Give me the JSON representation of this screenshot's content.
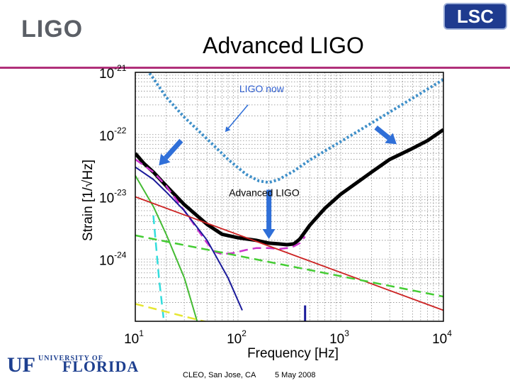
{
  "header": {
    "logo_left": "LIGO",
    "logo_right": "LSC",
    "title": "Advanced LIGO"
  },
  "footer": {
    "logo": "UF",
    "logo_univ": "UNIVERSITY OF",
    "logo_state": "FLORIDA",
    "venue": "CLEO, San Jose, CA",
    "date": "5 May 2008"
  },
  "chart_data": {
    "type": "line",
    "xlabel": "Frequency [Hz]",
    "ylabel": "Strain [1/√Hz]",
    "xscale": "log",
    "yscale": "log",
    "xlim": [
      10,
      10000
    ],
    "ylim": [
      1e-25,
      1e-21
    ],
    "grid": true,
    "x_ticks": [
      {
        "base": "10",
        "exp": "1",
        "value": 10
      },
      {
        "base": "10",
        "exp": "2",
        "value": 100
      },
      {
        "base": "10",
        "exp": "3",
        "value": 1000
      },
      {
        "base": "10",
        "exp": "4",
        "value": 10000
      }
    ],
    "y_ticks": [
      {
        "base": "10",
        "exp": "-21",
        "value": 1e-21
      },
      {
        "base": "10",
        "exp": "-22",
        "value": 1e-22
      },
      {
        "base": "10",
        "exp": "-23",
        "value": 1e-23
      },
      {
        "base": "10",
        "exp": "-24",
        "value": 1e-24
      }
    ],
    "annotations": [
      {
        "text": "LIGO now",
        "color": "#2f5fd0"
      },
      {
        "text": "Advanced LIGO",
        "color": "#000000"
      }
    ],
    "series": [
      {
        "key": "ligo_now",
        "color": "#3f8fc8",
        "style": "dotted",
        "x": [
          13.0,
          15.0,
          20,
          30,
          50,
          80,
          120,
          160,
          200,
          250,
          350,
          500,
          800,
          1500,
          3000,
          6000,
          10000
        ],
        "y": [
          1.1e-21,
          8e-22,
          4e-22,
          1.9e-22,
          8.5e-23,
          4e-23,
          2.3e-23,
          1.8e-23,
          1.7e-23,
          1.9e-23,
          2.6e-23,
          3.9e-23,
          6.2e-23,
          1.15e-22,
          2.3e-22,
          4.6e-22,
          7.7e-22
        ]
      },
      {
        "key": "advanced_ligo",
        "color": "#000000",
        "style": "solid",
        "x": [
          10,
          12,
          15,
          20,
          30,
          50,
          70,
          100,
          150,
          200,
          250,
          300,
          350,
          400,
          500,
          700,
          1000,
          2000,
          3000,
          5000,
          7000,
          10000
        ],
        "y": [
          5e-23,
          3.5e-23,
          2.5e-23,
          1.5e-23,
          7.5e-24,
          3.6e-24,
          2.5e-24,
          2.2e-24,
          2e-24,
          1.8e-24,
          1.75e-24,
          1.7e-24,
          1.75e-24,
          2.1e-24,
          3.5e-24,
          6.5e-24,
          1.1e-23,
          2.5e-23,
          4e-23,
          6e-23,
          8e-23,
          1.2e-22
        ]
      },
      {
        "key": "magenta_dashed",
        "color": "#cc33cc",
        "style": "dashed",
        "x": [
          10,
          15,
          20,
          30,
          50,
          60,
          70,
          90,
          120,
          150,
          200,
          250,
          300,
          350,
          400,
          450
        ],
        "y": [
          4e-23,
          2.5e-23,
          1.5e-23,
          6e-24,
          1.8e-24,
          1.3e-24,
          1.2e-24,
          1.25e-24,
          1.4e-24,
          1.5e-24,
          1.5e-24,
          1.45e-24,
          1.5e-24,
          1.6e-24,
          1.8e-24,
          2.3e-24
        ]
      },
      {
        "key": "dark_blue",
        "color": "#1a1a9a",
        "style": "solid",
        "x": [
          10,
          15,
          20,
          30,
          50,
          80,
          110
        ],
        "y": [
          3e-23,
          1.9e-23,
          1.2e-23,
          6e-24,
          2e-24,
          5e-25,
          1.5e-25
        ]
      },
      {
        "key": "green_solid",
        "color": "#44bb33",
        "style": "solid",
        "x": [
          10,
          15,
          20,
          30,
          40
        ],
        "y": [
          2.2e-23,
          7e-24,
          2.5e-24,
          5e-25,
          1e-25
        ]
      },
      {
        "key": "cyan_dashed",
        "color": "#33dddd",
        "style": "dashed",
        "x": [
          15,
          17,
          19
        ],
        "y": [
          5e-24,
          5e-25,
          1e-25
        ]
      },
      {
        "key": "yellow_dashed",
        "color": "#e6e633",
        "style": "dashed",
        "x": [
          10,
          30,
          60,
          100
        ],
        "y": [
          1.9e-25,
          1.2e-25,
          9e-26,
          7e-26
        ]
      },
      {
        "key": "red",
        "color": "#cc2222",
        "style": "solid",
        "x": [
          10,
          10000
        ],
        "y": [
          1e-23,
          1.5e-25
        ]
      },
      {
        "key": "green_dashed",
        "color": "#44cc33",
        "style": "dashed",
        "x": [
          10,
          10000
        ],
        "y": [
          2.4e-24,
          2.5e-25
        ]
      },
      {
        "key": "blue_spike",
        "color": "#1a1a9a",
        "style": "solid",
        "x": [
          450,
          450
        ],
        "y": [
          1.8e-25,
          1e-25
        ]
      }
    ],
    "arrows": [
      {
        "x1": 28,
        "y1": 8e-23,
        "x2": 17,
        "y2": 3.2e-23,
        "color": "#2f6fd8",
        "width": 7
      },
      {
        "x1": 2200,
        "y1": 1.3e-22,
        "x2": 3500,
        "y2": 7e-23,
        "color": "#2f6fd8",
        "width": 7
      },
      {
        "x1": 200,
        "y1": 1.3e-23,
        "x2": 200,
        "y2": 2.1e-24,
        "color": "#2f6fd8",
        "width": 7
      },
      {
        "x1": 125,
        "y1": 3e-22,
        "x2": 75,
        "y2": 1.1e-22,
        "color": "#2f6fd8",
        "width": 1.5
      }
    ]
  }
}
